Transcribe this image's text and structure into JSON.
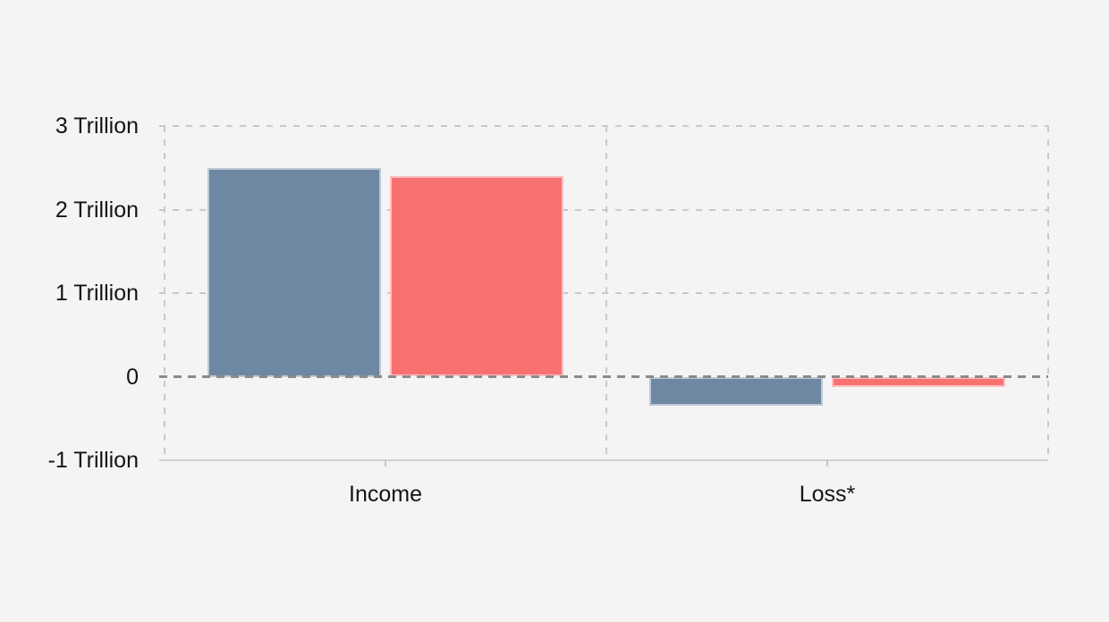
{
  "chart_data": {
    "type": "bar",
    "title": "",
    "categories": [
      "Income",
      "Loss*"
    ],
    "series": [
      {
        "name": "blue",
        "color": "#6e87a3",
        "values": [
          2.5,
          -0.35
        ]
      },
      {
        "name": "red",
        "color": "#f87171",
        "values": [
          2.4,
          -0.12
        ]
      }
    ],
    "value_unit": "Trillion",
    "y_ticks": [
      {
        "value": 3,
        "label": "3 Trillion"
      },
      {
        "value": 2,
        "label": "2 Trillion"
      },
      {
        "value": 1,
        "label": "1 Trillion"
      },
      {
        "value": 0,
        "label": "0"
      },
      {
        "value": -1,
        "label": "-1 Trillion"
      }
    ],
    "ylim": [
      -1,
      3
    ],
    "xlabel": "",
    "ylabel": "",
    "legend_position": "none",
    "grid": "dashed"
  },
  "colors": {
    "background": "#f4f4f5",
    "bar_blue": "#6e87a3",
    "bar_red": "#f87171",
    "gridline": "#c9c9c9",
    "zero_line": "#8a8a8a",
    "axis_line": "#d2d2d2",
    "tick_mark": "#c6c6c6",
    "label_text": "#141414"
  }
}
